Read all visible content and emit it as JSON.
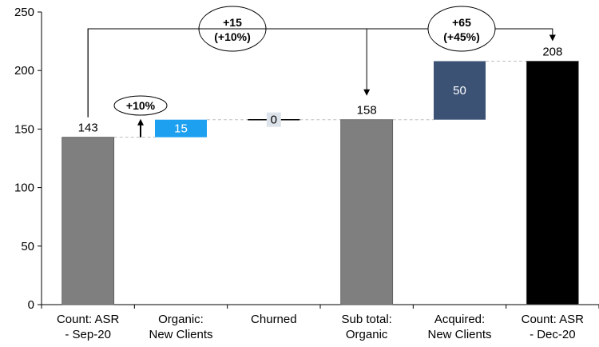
{
  "chart_data": {
    "type": "bar",
    "subtype": "waterfall",
    "categories": [
      [
        "Count: ASR",
        "- Sep-20"
      ],
      [
        "Organic:",
        "New Clients"
      ],
      [
        "Churned"
      ],
      [
        "Sub total:",
        "Organic"
      ],
      [
        "Acquired:",
        "New Clients"
      ],
      [
        "Count: ASR",
        "- Dec-20"
      ]
    ],
    "bars": [
      {
        "base": 0,
        "value": 143,
        "label": "143",
        "kind": "total"
      },
      {
        "base": 143,
        "value": 15,
        "label": "15",
        "kind": "increase"
      },
      {
        "base": 158,
        "value": 0,
        "label": "0",
        "kind": "change"
      },
      {
        "base": 0,
        "value": 158,
        "label": "158",
        "kind": "subtotal"
      },
      {
        "base": 158,
        "value": 50,
        "label": "50",
        "kind": "increase"
      },
      {
        "base": 0,
        "value": 208,
        "label": "208",
        "kind": "total"
      }
    ],
    "ylim": [
      0,
      250
    ],
    "yticks": [
      0,
      50,
      100,
      150,
      200,
      250
    ],
    "grid": false,
    "annotations": [
      {
        "text": "+10%",
        "kind": "step"
      },
      {
        "text": [
          "+15",
          "(+10%)"
        ],
        "kind": "bracket",
        "from": 0,
        "to": 3
      },
      {
        "text": [
          "+65",
          "(+45%)"
        ],
        "kind": "bracket",
        "from": 0,
        "to": 5
      }
    ],
    "colors": {
      "total_gray": "#7f7f7f",
      "organic_blue": "#1ea0f0",
      "acquired_navy": "#3b5275",
      "final_black": "#000000",
      "connector": "#bfbfbf",
      "churn_label_bg": "#dde3ea"
    }
  }
}
